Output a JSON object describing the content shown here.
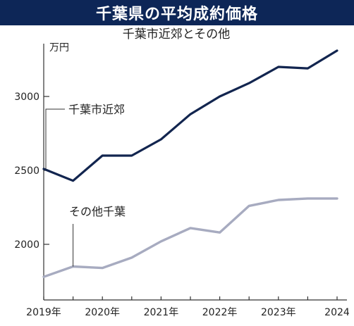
{
  "chart_data": {
    "type": "line",
    "title": "千葉県の平均成約価格",
    "subtitle": "千葉市近郊とその他",
    "ylabel": "万円",
    "ylim": [
      1750,
      3350
    ],
    "yticks": [
      2000,
      2500,
      3000
    ],
    "xlim": [
      2019,
      2024.1
    ],
    "xtick_labels": [
      "2019年",
      "2020年",
      "2021年",
      "2022年",
      "2023年",
      "2024"
    ],
    "x": [
      2019.0,
      2019.5,
      2020.0,
      2020.5,
      2021.0,
      2021.5,
      2022.0,
      2022.5,
      2023.0,
      2023.5,
      2024.0
    ],
    "series": [
      {
        "name": "千葉市近郊",
        "values": [
          2510,
          2430,
          2600,
          2600,
          2710,
          2880,
          3000,
          3090,
          3200,
          3190,
          3310
        ]
      },
      {
        "name": "その他千葉",
        "values": [
          1780,
          1850,
          1840,
          1910,
          2020,
          2110,
          2080,
          2260,
          2300,
          2310,
          2310
        ]
      }
    ],
    "grid": false,
    "legend": "inline labels"
  },
  "colors": {
    "title_bg": "#0d2657",
    "series_1": "#12254f",
    "series_2": "#a7abc0",
    "axis": "#333333"
  }
}
